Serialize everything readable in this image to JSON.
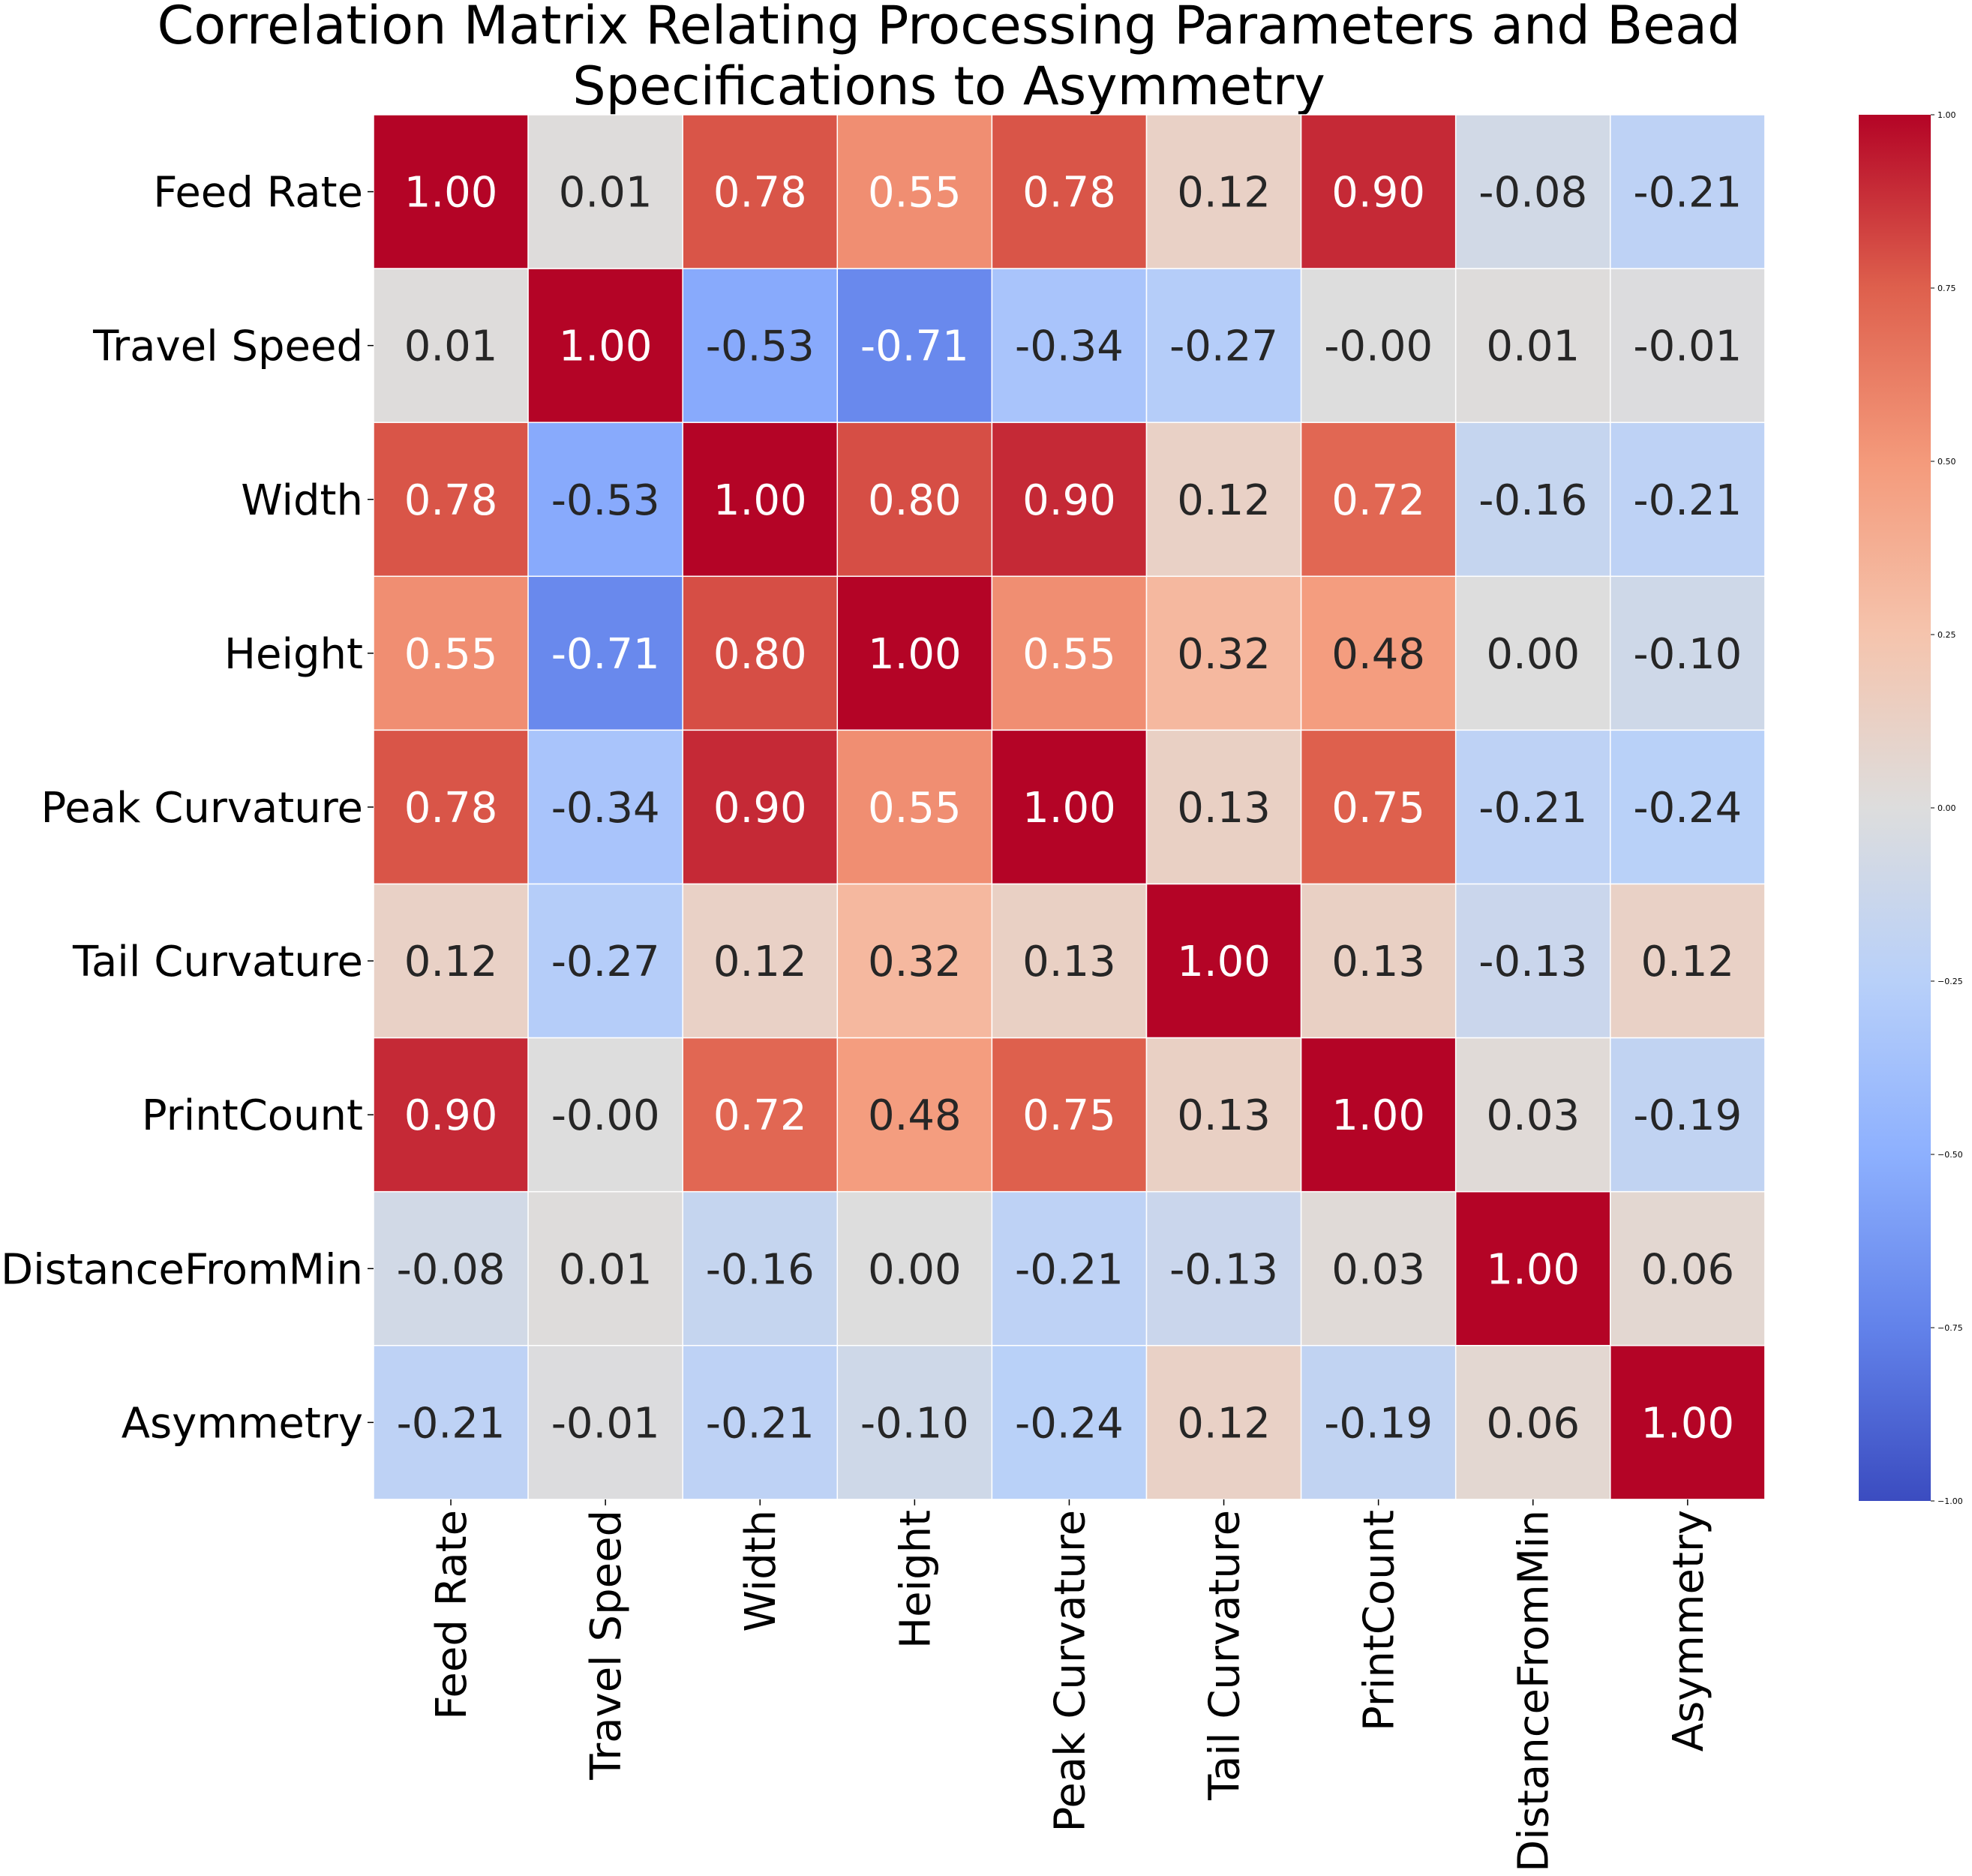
{
  "chart_data": {
    "type": "heatmap",
    "title": "Correlation Matrix Relating Processing Parameters and Bead Specifications to Asymmetry",
    "title_lines": [
      "Correlation Matrix Relating Processing Parameters and Bead",
      "Specifications to Asymmetry"
    ],
    "labels": [
      "Feed Rate",
      "Travel Speed",
      "Width",
      "Height",
      "Peak Curvature",
      "Tail Curvature",
      "PrintCount",
      "DistanceFromMin",
      "Asymmetry"
    ],
    "matrix": [
      [
        1.0,
        0.01,
        0.78,
        0.55,
        0.78,
        0.12,
        0.9,
        -0.08,
        -0.21
      ],
      [
        0.01,
        1.0,
        -0.53,
        -0.71,
        -0.34,
        -0.27,
        -0.0,
        0.01,
        -0.01
      ],
      [
        0.78,
        -0.53,
        1.0,
        0.8,
        0.9,
        0.12,
        0.72,
        -0.16,
        -0.21
      ],
      [
        0.55,
        -0.71,
        0.8,
        1.0,
        0.55,
        0.32,
        0.48,
        0.0,
        -0.1
      ],
      [
        0.78,
        -0.34,
        0.9,
        0.55,
        1.0,
        0.13,
        0.75,
        -0.21,
        -0.24
      ],
      [
        0.12,
        -0.27,
        0.12,
        0.32,
        0.13,
        1.0,
        0.13,
        -0.13,
        0.12
      ],
      [
        0.9,
        -0.0,
        0.72,
        0.48,
        0.75,
        0.13,
        1.0,
        0.03,
        -0.19
      ],
      [
        -0.08,
        0.01,
        -0.16,
        0.0,
        -0.21,
        -0.13,
        0.03,
        1.0,
        0.06
      ],
      [
        -0.21,
        -0.01,
        -0.21,
        -0.1,
        -0.24,
        0.12,
        -0.19,
        0.06,
        1.0
      ]
    ],
    "value_format": "2 decimals",
    "colormap": "coolwarm",
    "vmin": -1.0,
    "vmax": 1.0,
    "colorbar_ticks": [
      1.0,
      0.75,
      0.5,
      0.25,
      0.0,
      -0.25,
      -0.5,
      -0.75,
      -1.0
    ],
    "colorbar_tick_labels": [
      "1.00",
      "0.75",
      "0.50",
      "0.25",
      "0.00",
      "−0.25",
      "−0.50",
      "−0.75",
      "−1.00"
    ],
    "grid": false,
    "cell_border_color": "#ffffff",
    "x_tick_rotation": "vertical"
  }
}
